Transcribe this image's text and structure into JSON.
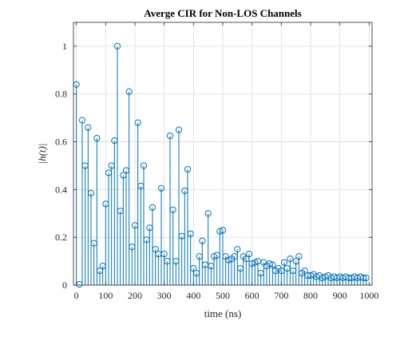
{
  "chart_data": {
    "type": "stem",
    "title": "Averge CIR for Non-LOS Channels",
    "xlabel": "time (ns)",
    "ylabel": "|h(t)|",
    "xlim": [
      -10,
      1010
    ],
    "ylim": [
      0,
      1.1
    ],
    "xticks": [
      0,
      100,
      200,
      300,
      400,
      500,
      600,
      700,
      800,
      900,
      1000
    ],
    "yticks": [
      0,
      0.2,
      0.4,
      0.6,
      0.8,
      1
    ],
    "xtick_labels": [
      "0",
      "100",
      "200",
      "300",
      "400",
      "500",
      "600",
      "700",
      "800",
      "900",
      "1000"
    ],
    "ytick_labels": [
      "0",
      "0.2",
      "0.4",
      "0.6",
      "0.8",
      "1"
    ],
    "grid": true,
    "color": "#0072BD",
    "x": [
      0,
      10,
      20,
      30,
      40,
      50,
      60,
      70,
      80,
      90,
      100,
      110,
      120,
      130,
      140,
      150,
      160,
      170,
      180,
      190,
      200,
      210,
      220,
      230,
      240,
      250,
      260,
      270,
      280,
      290,
      300,
      310,
      320,
      330,
      340,
      350,
      360,
      370,
      380,
      390,
      400,
      410,
      420,
      430,
      440,
      450,
      460,
      470,
      480,
      490,
      500,
      510,
      520,
      530,
      540,
      550,
      560,
      570,
      580,
      590,
      600,
      610,
      620,
      630,
      640,
      650,
      660,
      670,
      680,
      690,
      700,
      710,
      720,
      730,
      740,
      750,
      760,
      770,
      780,
      790,
      800,
      810,
      820,
      830,
      840,
      850,
      860,
      870,
      880,
      890,
      900,
      910,
      920,
      930,
      940,
      950,
      960,
      970,
      980,
      990
    ],
    "y": [
      0.84,
      0.003,
      0.69,
      0.5,
      0.66,
      0.385,
      0.175,
      0.615,
      0.06,
      0.08,
      0.34,
      0.47,
      0.5,
      0.605,
      1.0,
      0.31,
      0.46,
      0.48,
      0.81,
      0.16,
      0.25,
      0.68,
      0.415,
      0.5,
      0.19,
      0.24,
      0.325,
      0.15,
      0.13,
      0.405,
      0.13,
      0.1,
      0.625,
      0.315,
      0.1,
      0.65,
      0.205,
      0.395,
      0.485,
      0.215,
      0.07,
      0.05,
      0.12,
      0.185,
      0.085,
      0.3,
      0.08,
      0.12,
      0.125,
      0.225,
      0.23,
      0.12,
      0.105,
      0.11,
      0.12,
      0.15,
      0.07,
      0.12,
      0.11,
      0.13,
      0.09,
      0.095,
      0.1,
      0.05,
      0.095,
      0.08,
      0.09,
      0.085,
      0.06,
      0.07,
      0.06,
      0.095,
      0.07,
      0.11,
      0.06,
      0.1,
      0.12,
      0.05,
      0.06,
      0.04,
      0.04,
      0.045,
      0.035,
      0.04,
      0.03,
      0.035,
      0.04,
      0.03,
      0.035,
      0.03,
      0.035,
      0.03,
      0.035,
      0.03,
      0.03,
      0.035,
      0.03,
      0.035,
      0.03,
      0.03
    ]
  }
}
